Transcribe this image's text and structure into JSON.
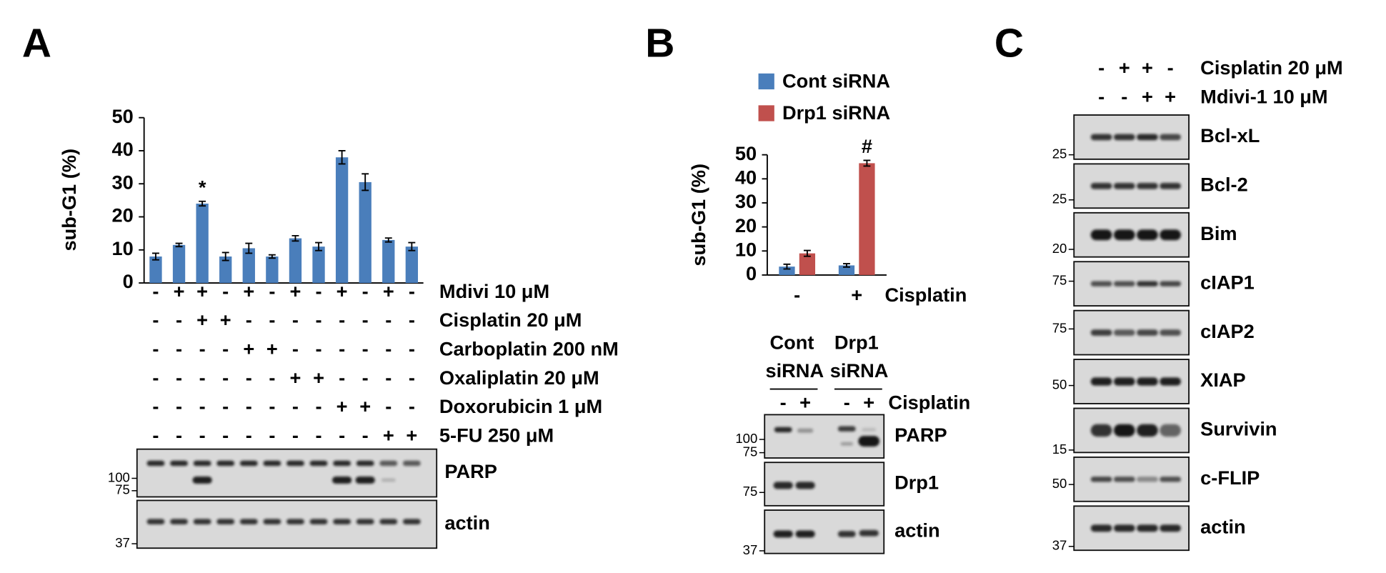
{
  "chart_data": [
    {
      "type": "bar",
      "ylabel": "sub-G1 (%)",
      "color": "#4a7ebb",
      "values": [
        8,
        11.5,
        24,
        8,
        10.5,
        8,
        13.5,
        11,
        38,
        30.5,
        13,
        11
      ],
      "errors": [
        1,
        0.5,
        0.7,
        1.2,
        1.5,
        0.5,
        0.8,
        1.2,
        2,
        2.5,
        0.6,
        1.2
      ],
      "annotations": [
        null,
        null,
        "*",
        null,
        null,
        null,
        null,
        null,
        null,
        null,
        null,
        null
      ],
      "ylim": [
        0,
        50
      ],
      "yticks": [
        0,
        10,
        20,
        30,
        40,
        50
      ]
    },
    {
      "type": "grouped-bar",
      "ylabel": "sub-G1 (%)",
      "xlabel": "Cisplatin",
      "categories": [
        "-",
        "+"
      ],
      "series": [
        {
          "name": "Cont siRNA",
          "color": "#4a7ebb",
          "values": [
            3.5,
            4
          ],
          "errors": [
            1,
            0.7
          ],
          "annotations": [
            null,
            null
          ]
        },
        {
          "name": "Drp1 siRNA",
          "color": "#c0504d",
          "values": [
            9,
            46.5
          ],
          "errors": [
            1.2,
            1.2
          ],
          "annotations": [
            null,
            "#"
          ]
        }
      ],
      "ylim": [
        0,
        50
      ],
      "yticks": [
        0,
        10,
        20,
        30,
        40,
        50
      ]
    }
  ],
  "panel_a": {
    "label": "A",
    "conditions": [
      {
        "name": "Mdivi 10 μM",
        "signs": [
          "-",
          "+",
          "+",
          "-",
          "+",
          "-",
          "+",
          "-",
          "+",
          "-",
          "+",
          "-"
        ]
      },
      {
        "name": "Cisplatin 20 μM",
        "signs": [
          "-",
          "-",
          "+",
          "+",
          "-",
          "-",
          "-",
          "-",
          "-",
          "-",
          "-",
          "-"
        ]
      },
      {
        "name": "Carboplatin 200 nM",
        "signs": [
          "-",
          "-",
          "-",
          "-",
          "+",
          "+",
          "-",
          "-",
          "-",
          "-",
          "-",
          "-"
        ]
      },
      {
        "name": "Oxaliplatin 20 μM",
        "signs": [
          "-",
          "-",
          "-",
          "-",
          "-",
          "-",
          "+",
          "+",
          "-",
          "-",
          "-",
          "-"
        ]
      },
      {
        "name": "Doxorubicin 1 μM",
        "signs": [
          "-",
          "-",
          "-",
          "-",
          "-",
          "-",
          "-",
          "-",
          "+",
          "+",
          "-",
          "-"
        ]
      },
      {
        "name": "5-FU 250 μM",
        "signs": [
          "-",
          "-",
          "-",
          "-",
          "-",
          "-",
          "-",
          "-",
          "-",
          "-",
          "+",
          "+"
        ]
      }
    ],
    "blots": [
      {
        "name": "PARP",
        "markers": [
          100,
          75
        ]
      },
      {
        "name": "actin",
        "markers": [
          37
        ]
      }
    ]
  },
  "panel_b": {
    "label": "B",
    "groups": [
      "Cont siRNA",
      "Drp1 siRNA"
    ],
    "treatment": "Cisplatin",
    "signs": [
      "-",
      "+",
      "-",
      "+"
    ],
    "blots": [
      {
        "name": "PARP",
        "markers": [
          100,
          75
        ]
      },
      {
        "name": "Drp1",
        "markers": [
          75
        ]
      },
      {
        "name": "actin",
        "markers": [
          37
        ]
      }
    ]
  },
  "panel_c": {
    "label": "C",
    "conditions": [
      {
        "name": "Cisplatin 20 μM",
        "signs": [
          "-",
          "+",
          "+",
          "-"
        ]
      },
      {
        "name": "Mdivi-1 10 μM",
        "signs": [
          "-",
          "-",
          "+",
          "+"
        ]
      }
    ],
    "blots": [
      {
        "name": "Bcl-xL",
        "markers": [
          25
        ]
      },
      {
        "name": "Bcl-2",
        "markers": [
          25
        ]
      },
      {
        "name": "Bim",
        "markers": [
          20
        ]
      },
      {
        "name": "cIAP1",
        "markers": [
          75
        ]
      },
      {
        "name": "cIAP2",
        "markers": [
          75
        ]
      },
      {
        "name": "XIAP",
        "markers": [
          50
        ]
      },
      {
        "name": "Survivin",
        "markers": [
          15
        ]
      },
      {
        "name": "c-FLIP",
        "markers": [
          50
        ]
      },
      {
        "name": "actin",
        "markers": [
          37
        ]
      }
    ]
  }
}
